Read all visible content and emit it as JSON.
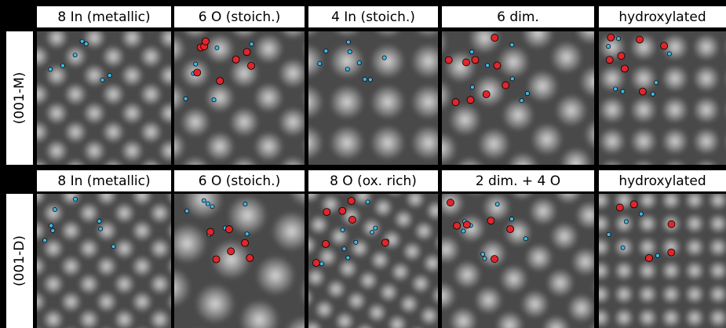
{
  "rows": [
    {
      "label": "(001-M)",
      "panels": [
        "8 In (metallic)",
        "6 O (stoich.)",
        "4 In (stoich.)",
        "6 dim.",
        "hydroxylated"
      ]
    },
    {
      "label": "(001-D)",
      "panels": [
        "8 In (metallic)",
        "6 O (stoich.)",
        "8 O (ox. rich)",
        "2 dim. + 4 O",
        "hydroxylated"
      ]
    }
  ]
}
